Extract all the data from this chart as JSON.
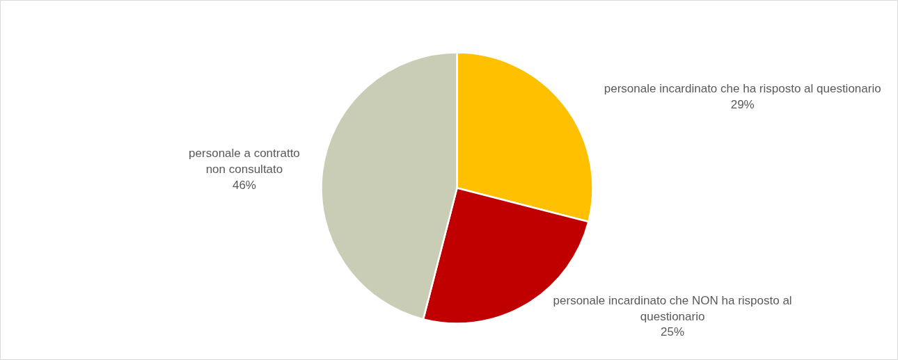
{
  "chart_data": {
    "type": "pie",
    "categories": [
      "personale incardinato che ha risposto al questionario",
      "personale incardinato che NON ha risposto al questionario",
      "personale a contratto non consultato"
    ],
    "values": [
      29,
      25,
      46
    ],
    "value_labels": [
      "29%",
      "25%",
      "46%"
    ],
    "colors": [
      "#ffc000",
      "#c00000",
      "#c9cdb5"
    ]
  }
}
